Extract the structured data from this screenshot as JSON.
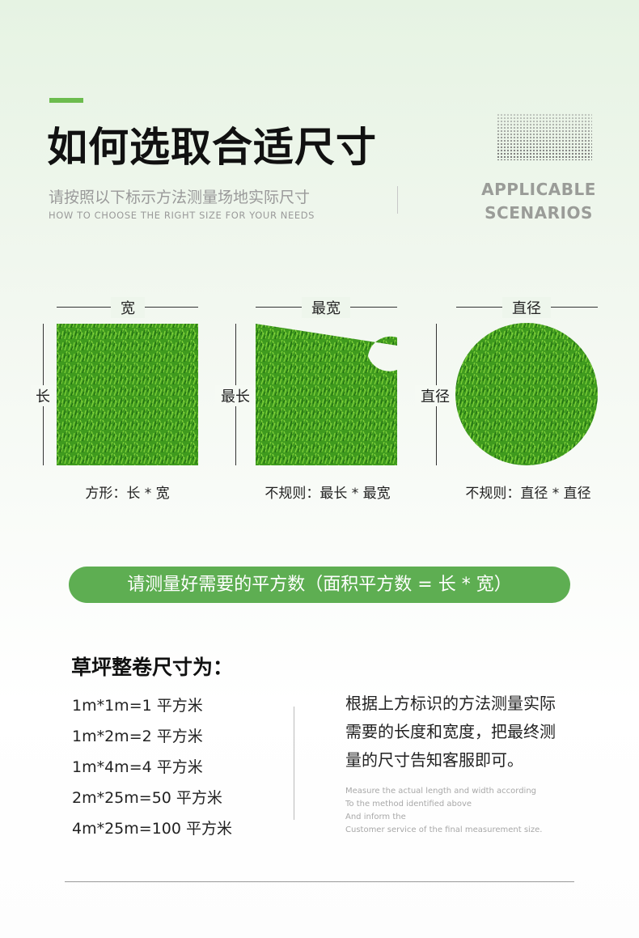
{
  "header": {
    "title": "如何选取合适尺寸",
    "subtitle_cn": "请按照以下标示方法测量场地实际尺寸",
    "subtitle_en": "HOW TO CHOOSE THE RIGHT SIZE FOR YOUR NEEDS",
    "badge_line1": "APPLICABLE",
    "badge_line2": "SCENARIOS",
    "accent_color": "#6cbc4e"
  },
  "shapes": [
    {
      "top_label": "宽",
      "side_label": "长",
      "caption": "方形：长 * 宽",
      "shape": "square"
    },
    {
      "top_label": "最宽",
      "side_label": "最长",
      "caption": "不规则：最长 * 最宽",
      "shape": "irregular"
    },
    {
      "top_label": "直径",
      "side_label": "直径",
      "caption": "不规则：直径 * 直径",
      "shape": "circle"
    }
  ],
  "banner": {
    "text": "请测量好需要的平方数（面积平方数 = 长 * 宽）",
    "color": "#5eae52"
  },
  "sizes": {
    "heading": "草坪整卷尺寸为：",
    "items": [
      "1m*1m=1 平方米",
      "1m*2m=2 平方米",
      "1m*4m=4 平方米",
      "2m*25m=50 平方米",
      "4m*25m=100 平方米"
    ]
  },
  "instructions": {
    "cn_lines": [
      "根据上方标识的方法测量实际",
      "需要的长度和宽度，把最终测",
      "量的尺寸告知客服即可。"
    ],
    "en_lines": [
      "Measure the actual length and width according",
      "To the method identified above",
      "And inform the",
      "Customer service of the final measurement size."
    ]
  }
}
